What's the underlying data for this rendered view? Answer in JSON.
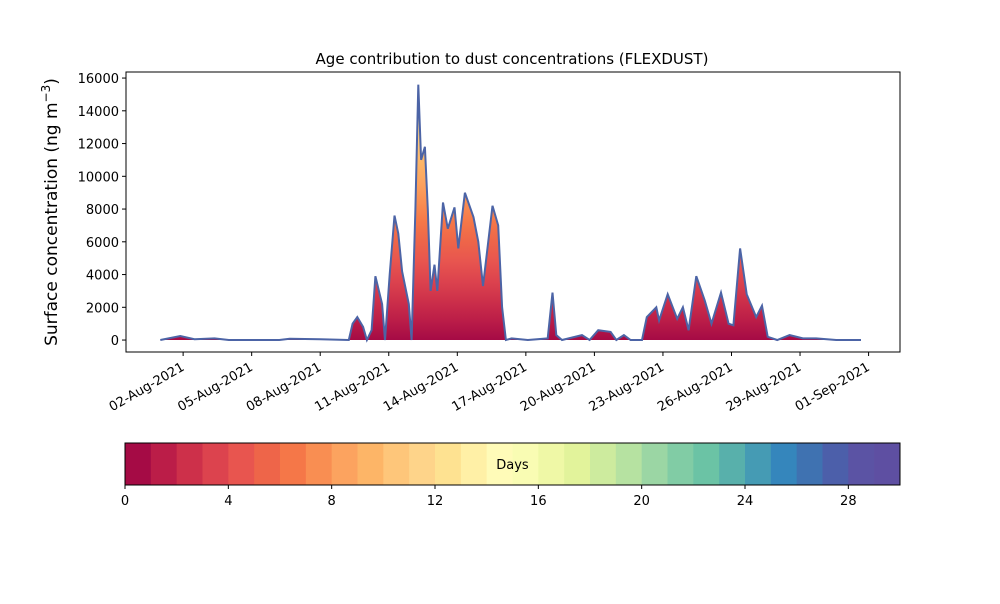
{
  "chart_data": {
    "type": "area",
    "title": "Age contribution to dust concentrations (FLEXDUST)",
    "ylabel": {
      "text": "Surface concentration (ng m",
      "sup": "−3",
      "end": ")"
    },
    "xlim": [
      "2021-07-30 12:00",
      "2021-09-02 09:00"
    ],
    "xticks": [
      {
        "value": "2021-08-02",
        "label": "02-Aug-2021"
      },
      {
        "value": "2021-08-05",
        "label": "05-Aug-2021"
      },
      {
        "value": "2021-08-08",
        "label": "08-Aug-2021"
      },
      {
        "value": "2021-08-11",
        "label": "11-Aug-2021"
      },
      {
        "value": "2021-08-14",
        "label": "14-Aug-2021"
      },
      {
        "value": "2021-08-17",
        "label": "17-Aug-2021"
      },
      {
        "value": "2021-08-20",
        "label": "20-Aug-2021"
      },
      {
        "value": "2021-08-23",
        "label": "23-Aug-2021"
      },
      {
        "value": "2021-08-26",
        "label": "26-Aug-2021"
      },
      {
        "value": "2021-08-29",
        "label": "29-Aug-2021"
      },
      {
        "value": "2021-09-01",
        "label": "01-Sep-2021"
      }
    ],
    "ylim": [
      -730,
      16370
    ],
    "yticks": [
      0,
      2000,
      4000,
      6000,
      8000,
      10000,
      12000,
      14000,
      16000
    ],
    "line_color": "#4c64a6",
    "x": [
      "2021-08-01 00:00",
      "2021-08-01 21:00",
      "2021-08-02 12:00",
      "2021-08-03 09:00",
      "2021-08-04 00:00",
      "2021-08-06 05:00",
      "2021-08-06 16:00",
      "2021-08-08 00:00",
      "2021-08-09 06:00",
      "2021-08-09 10:00",
      "2021-08-09 15:00",
      "2021-08-09 21:00",
      "2021-08-10 01:00",
      "2021-08-10 06:00",
      "2021-08-10 10:00",
      "2021-08-10 17:00",
      "2021-08-10 20:00",
      "2021-08-11 01:00",
      "2021-08-11 06:00",
      "2021-08-11 10:00",
      "2021-08-11 14:00",
      "2021-08-11 21:00",
      "2021-08-12 00:00",
      "2021-08-12 04:00",
      "2021-08-12 07:00",
      "2021-08-12 10:00",
      "2021-08-12 14:00",
      "2021-08-12 17:00",
      "2021-08-12 20:00",
      "2021-08-13 00:00",
      "2021-08-13 03:00",
      "2021-08-13 09:00",
      "2021-08-13 14:00",
      "2021-08-13 21:00",
      "2021-08-14 01:00",
      "2021-08-14 08:00",
      "2021-08-14 17:00",
      "2021-08-14 22:00",
      "2021-08-15 03:00",
      "2021-08-15 13:00",
      "2021-08-15 19:00",
      "2021-08-15 23:00",
      "2021-08-16 03:00",
      "2021-08-16 09:00",
      "2021-08-17 02:00",
      "2021-08-17 23:00",
      "2021-08-18 04:00",
      "2021-08-18 08:00",
      "2021-08-18 14:00",
      "2021-08-19 11:00",
      "2021-08-19 19:00",
      "2021-08-20 04:00",
      "2021-08-20 17:00",
      "2021-08-20 23:00",
      "2021-08-21 07:00",
      "2021-08-21 14:00",
      "2021-08-22 02:00",
      "2021-08-22 07:00",
      "2021-08-22 17:00",
      "2021-08-22 20:00",
      "2021-08-23 05:00",
      "2021-08-23 15:00",
      "2021-08-23 21:00",
      "2021-08-24 03:00",
      "2021-08-24 11:00",
      "2021-08-24 20:00",
      "2021-08-25 03:00",
      "2021-08-25 13:00",
      "2021-08-25 21:00",
      "2021-08-26 02:00",
      "2021-08-26 09:00",
      "2021-08-26 16:00",
      "2021-08-27 02:00",
      "2021-08-27 08:00",
      "2021-08-27 14:00",
      "2021-08-28 00:00",
      "2021-08-28 13:00",
      "2021-08-29 03:00",
      "2021-08-29 17:00",
      "2021-08-30 14:00",
      "2021-08-31 16:00"
    ],
    "values": [
      0,
      250,
      50,
      100,
      0,
      0,
      80,
      50,
      0,
      1000,
      1400,
      800,
      0,
      600,
      3900,
      2200,
      0,
      4000,
      7600,
      6500,
      4200,
      2200,
      0,
      8000,
      15600,
      11000,
      11800,
      8000,
      3000,
      4600,
      3000,
      8400,
      6800,
      8100,
      5600,
      9000,
      7500,
      6000,
      3300,
      8200,
      7000,
      2000,
      0,
      100,
      0,
      100,
      2900,
      300,
      0,
      300,
      0,
      600,
      500,
      0,
      300,
      0,
      0,
      1400,
      2000,
      1200,
      2800,
      1300,
      2000,
      600,
      3900,
      2400,
      1000,
      2900,
      1000,
      900,
      5600,
      2800,
      1400,
      2100,
      200,
      0,
      300,
      100,
      100,
      0,
      0
    ],
    "colorbar": {
      "label": "Days",
      "lim": [
        0,
        30
      ],
      "ticks": [
        0,
        4,
        8,
        12,
        16,
        20,
        24,
        28
      ],
      "colors": [
        "#a50b45",
        "#bb1d48",
        "#cd304a",
        "#dc434e",
        "#e8554f",
        "#ee6549",
        "#f57748",
        "#f98e52",
        "#fca35f",
        "#fdb567",
        "#fec67a",
        "#fed48a",
        "#fee291",
        "#fff0a6",
        "#fffbb8",
        "#f9fcb3",
        "#eff8a6",
        "#e2f39b",
        "#cdeb9e",
        "#b6e2a1",
        "#9bd6a4",
        "#81cca5",
        "#6bc3a5",
        "#58b0ab",
        "#459bb4",
        "#3586bc",
        "#3f72b1",
        "#4c5faa",
        "#5b53a4",
        "#5e4fa2"
      ]
    }
  }
}
